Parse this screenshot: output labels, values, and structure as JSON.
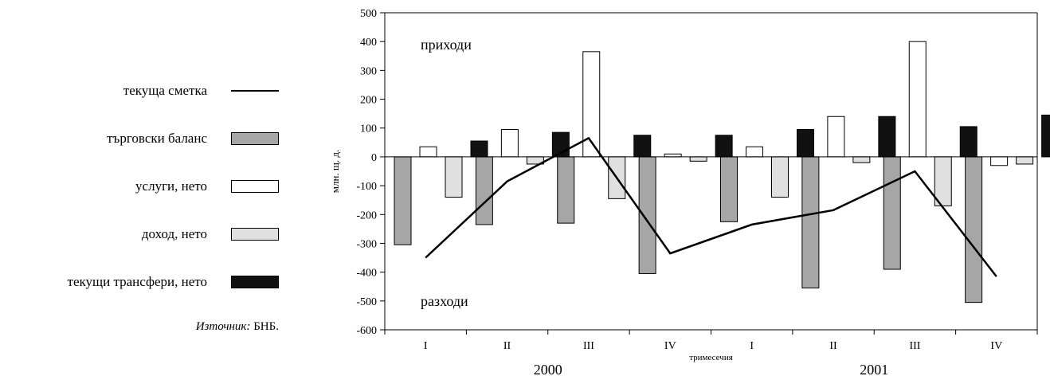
{
  "chart_data": {
    "type": "bar",
    "ylabel": "млн. щ. д.",
    "xlabel": "тримесечия",
    "ylim": [
      -600,
      500
    ],
    "ytick_step": 100,
    "grid": false,
    "legend_position": "left",
    "categories": [
      "I",
      "II",
      "III",
      "IV",
      "I",
      "II",
      "III",
      "IV"
    ],
    "year_labels": [
      "2000",
      "2001"
    ],
    "annotations": {
      "top": "приходи",
      "bottom": "разходи"
    },
    "series": [
      {
        "name": "търговски баланс",
        "kind": "bar",
        "color": "#a6a6a6",
        "values": [
          -305,
          -235,
          -230,
          -405,
          -225,
          -455,
          -390,
          -505
        ]
      },
      {
        "name": "услуги, нето",
        "kind": "bar",
        "color": "#ffffff",
        "values": [
          35,
          95,
          365,
          10,
          35,
          140,
          400,
          -30
        ]
      },
      {
        "name": "доход, нето",
        "kind": "bar",
        "color": "#e0e0e0",
        "values": [
          -140,
          -25,
          -145,
          -15,
          -140,
          -20,
          -170,
          -25
        ]
      },
      {
        "name": "текущи трансфери, нето",
        "kind": "bar",
        "color": "#111111",
        "values": [
          55,
          85,
          75,
          75,
          95,
          140,
          105,
          145
        ]
      },
      {
        "name": "текуща сметка",
        "kind": "line",
        "color": "#000000",
        "values": [
          -350,
          -85,
          65,
          -335,
          -235,
          -185,
          -50,
          -415
        ]
      }
    ]
  },
  "legend": [
    {
      "label": "текуща сметка",
      "kind": "line",
      "color": "#000000"
    },
    {
      "label": "търговски баланс",
      "kind": "bar",
      "color": "#a6a6a6"
    },
    {
      "label": "услуги, нето",
      "kind": "bar",
      "color": "#ffffff"
    },
    {
      "label": "доход, нето",
      "kind": "bar",
      "color": "#e0e0e0"
    },
    {
      "label": "текущи трансфери, нето",
      "kind": "bar",
      "color": "#111111"
    }
  ],
  "source": {
    "prefix": "Източник:",
    "text": " БНБ."
  }
}
